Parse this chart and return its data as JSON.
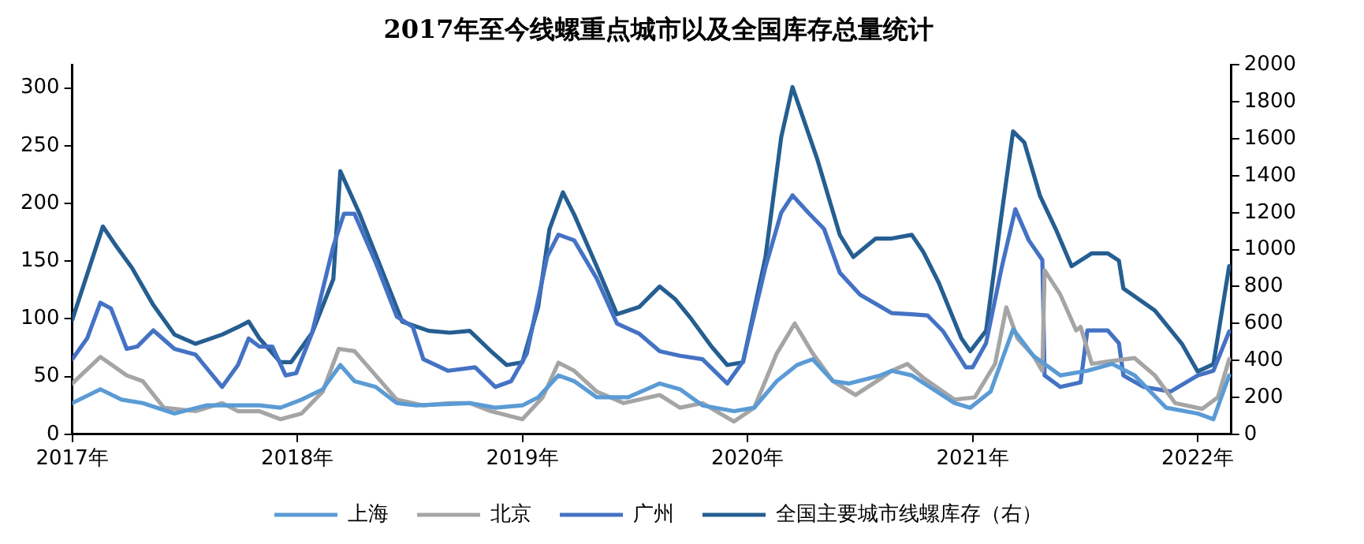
{
  "chart_data": {
    "type": "line",
    "title": "2017年至今线螺重点城市以及全国库存总量统计",
    "xlim": [
      2017,
      2022.15
    ],
    "xticks": [
      {
        "value": 2017,
        "label": "2017年"
      },
      {
        "value": 2018,
        "label": "2018年"
      },
      {
        "value": 2019,
        "label": "2019年"
      },
      {
        "value": 2020,
        "label": "2020年"
      },
      {
        "value": 2021,
        "label": "2021年"
      },
      {
        "value": 2022,
        "label": "2022年"
      }
    ],
    "ylim": [
      0,
      320
    ],
    "yticks": [
      0,
      50,
      100,
      150,
      200,
      250,
      300
    ],
    "y2lim": [
      0,
      2000
    ],
    "y2ticks": [
      0,
      200,
      400,
      600,
      800,
      1000,
      1200,
      1400,
      1600,
      1800,
      2000
    ],
    "grid": false,
    "legend": "bottom",
    "marker": "none",
    "line_style": "solid",
    "series": [
      {
        "name": "上海",
        "color": "#5b9bd5",
        "x": [
          2017.0,
          2017.125,
          2017.219,
          2017.313,
          2017.454,
          2017.595,
          2017.736,
          2017.831,
          2017.925,
          2018.019,
          2018.113,
          2018.191,
          2018.254,
          2018.348,
          2018.442,
          2018.53,
          2018.766,
          2018.88,
          2019.0,
          2019.07,
          2019.16,
          2019.23,
          2019.33,
          2019.47,
          2019.61,
          2019.7,
          2019.8,
          2019.94,
          2020.03,
          2020.13,
          2020.22,
          2020.29,
          2020.38,
          2020.45,
          2020.59,
          2020.64,
          2020.73,
          2020.92,
          2020.99,
          2021.08,
          2021.18,
          2021.27,
          2021.39,
          2021.51,
          2021.62,
          2021.72,
          2021.86,
          2022.0,
          2022.07,
          2022.14
        ],
        "values": [
          27,
          39,
          30,
          27,
          18,
          25,
          25,
          25,
          23,
          30,
          39,
          60,
          46,
          41,
          27,
          25,
          27,
          23,
          25,
          32,
          51,
          46,
          32,
          32,
          44,
          39,
          25,
          20,
          23,
          46,
          60,
          65,
          46,
          44,
          51,
          55,
          51,
          27,
          23,
          37,
          91,
          68,
          51,
          55,
          61,
          51,
          23,
          18,
          13,
          51
        ]
      },
      {
        "name": "北京",
        "color": "#a5a5a5",
        "x": [
          2017.0,
          2017.125,
          2017.242,
          2017.313,
          2017.407,
          2017.548,
          2017.666,
          2017.736,
          2017.831,
          2017.925,
          2018.019,
          2018.113,
          2018.184,
          2018.254,
          2018.348,
          2018.442,
          2018.56,
          2018.678,
          2018.766,
          2018.86,
          2019.0,
          2019.09,
          2019.16,
          2019.23,
          2019.33,
          2019.45,
          2019.61,
          2019.7,
          2019.8,
          2019.94,
          2020.03,
          2020.13,
          2020.21,
          2020.29,
          2020.38,
          2020.48,
          2020.59,
          2020.64,
          2020.71,
          2020.78,
          2020.92,
          2021.01,
          2021.1,
          2021.15,
          2021.2,
          2021.27,
          2021.31,
          2021.32,
          2021.39,
          2021.46,
          2021.48,
          2021.53,
          2021.6,
          2021.72,
          2021.81,
          2021.9,
          2022.02,
          2022.09,
          2022.14
        ],
        "values": [
          44,
          67,
          51,
          46,
          23,
          20,
          27,
          20,
          20,
          13,
          18,
          37,
          74,
          72,
          51,
          30,
          25,
          27,
          27,
          20,
          13,
          32,
          62,
          55,
          37,
          27,
          34,
          23,
          27,
          11,
          23,
          70,
          96,
          70,
          46,
          34,
          48,
          55,
          61,
          49,
          30,
          32,
          61,
          110,
          83,
          68,
          55,
          142,
          121,
          90,
          93,
          61,
          63,
          66,
          51,
          27,
          22,
          32,
          65
        ]
      },
      {
        "name": "广州",
        "color": "#4472c4",
        "x": [
          2017.0,
          2017.066,
          2017.125,
          2017.172,
          2017.242,
          2017.289,
          2017.36,
          2017.454,
          2017.548,
          2017.666,
          2017.736,
          2017.784,
          2017.831,
          2017.889,
          2017.948,
          2017.995,
          2018.066,
          2018.16,
          2018.207,
          2018.254,
          2018.348,
          2018.442,
          2018.513,
          2018.56,
          2018.67,
          2018.79,
          2018.88,
          2018.95,
          2019.02,
          2019.11,
          2019.16,
          2019.23,
          2019.33,
          2019.42,
          2019.52,
          2019.61,
          2019.7,
          2019.8,
          2019.91,
          2019.98,
          2020.08,
          2020.15,
          2020.2,
          2020.27,
          2020.34,
          2020.41,
          2020.5,
          2020.64,
          2020.73,
          2020.8,
          2020.87,
          2020.97,
          2021.0,
          2021.06,
          2021.13,
          2021.19,
          2021.25,
          2021.31,
          2021.32,
          2021.39,
          2021.48,
          2021.51,
          2021.6,
          2021.65,
          2021.67,
          2021.76,
          2021.88,
          2022.0,
          2022.07,
          2022.14
        ],
        "values": [
          65,
          83,
          114,
          109,
          74,
          76,
          90,
          74,
          69,
          41,
          60,
          83,
          76,
          76,
          51,
          53,
          88,
          163,
          191,
          191,
          149,
          102,
          93,
          65,
          55,
          58,
          41,
          46,
          70,
          154,
          173,
          168,
          135,
          96,
          87,
          72,
          68,
          65,
          44,
          63,
          145,
          192,
          207,
          192,
          178,
          140,
          121,
          105,
          104,
          103,
          89,
          58,
          58,
          79,
          145,
          195,
          168,
          151,
          51,
          41,
          45,
          90,
          90,
          79,
          51,
          41,
          37,
          51,
          55,
          89
        ]
      },
      {
        "name": "全国主要城市线螺库存（右）",
        "color": "#255e91",
        "axis": "y2",
        "x": [
          2017.0,
          2017.136,
          2017.195,
          2017.266,
          2017.36,
          2017.454,
          2017.548,
          2017.666,
          2017.736,
          2017.784,
          2017.831,
          2017.925,
          2017.972,
          2018.066,
          2018.16,
          2018.191,
          2018.278,
          2018.372,
          2018.466,
          2018.584,
          2018.678,
          2018.766,
          2018.86,
          2018.93,
          2019.0,
          2019.07,
          2019.12,
          2019.18,
          2019.23,
          2019.33,
          2019.42,
          2019.52,
          2019.61,
          2019.68,
          2019.75,
          2019.84,
          2019.91,
          2019.98,
          2020.08,
          2020.15,
          2020.2,
          2020.31,
          2020.41,
          2020.47,
          2020.57,
          2020.64,
          2020.73,
          2020.78,
          2020.85,
          2020.95,
          2020.99,
          2021.06,
          2021.13,
          2021.18,
          2021.23,
          2021.3,
          2021.37,
          2021.44,
          2021.53,
          2021.6,
          2021.65,
          2021.67,
          2021.81,
          2021.93,
          2022.0,
          2022.07,
          2022.14
        ],
        "values": [
          620,
          1125,
          1020,
          900,
          700,
          540,
          490,
          540,
          580,
          610,
          520,
          390,
          390,
          550,
          840,
          1425,
          1190,
          900,
          610,
          560,
          550,
          560,
          450,
          375,
          390,
          690,
          1110,
          1310,
          1190,
          910,
          650,
          690,
          800,
          730,
          625,
          475,
          375,
          390,
          960,
          1610,
          1880,
          1490,
          1080,
          960,
          1060,
          1060,
          1080,
          990,
          820,
          520,
          450,
          560,
          1200,
          1640,
          1580,
          1290,
          1110,
          910,
          980,
          980,
          940,
          790,
          670,
          490,
          340,
          380,
          910
        ]
      }
    ]
  }
}
